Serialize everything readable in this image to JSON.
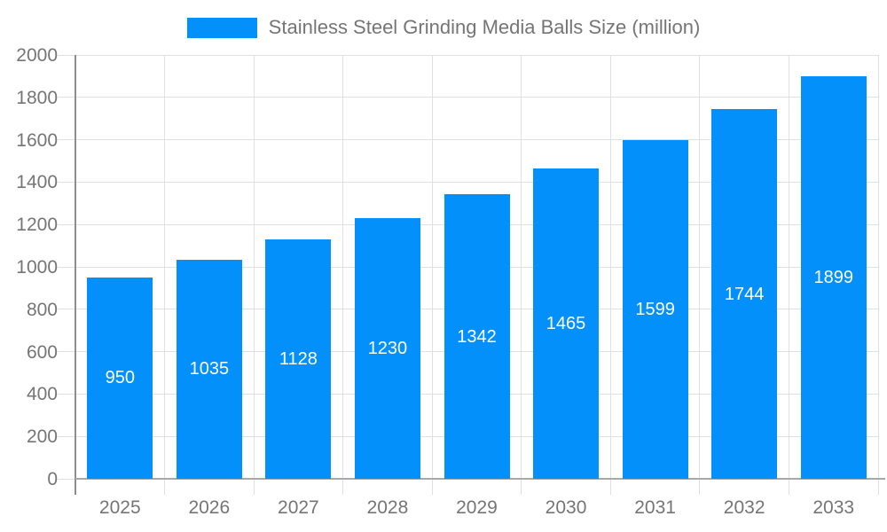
{
  "legend": {
    "label": "Stainless Steel Grinding Media Balls Size (million)"
  },
  "chart_data": {
    "type": "bar",
    "title": "Stainless Steel Grinding Media Balls Size (million)",
    "legend": [
      "Stainless Steel Grinding Media Balls Size (million)"
    ],
    "legend_position": "top",
    "categories": [
      "2025",
      "2026",
      "2027",
      "2028",
      "2029",
      "2030",
      "2031",
      "2032",
      "2033"
    ],
    "values": [
      950,
      1035,
      1128,
      1230,
      1342,
      1465,
      1599,
      1744,
      1899
    ],
    "xlabel": "",
    "ylabel": "",
    "ylim": [
      0,
      2000
    ],
    "ytick_step": 200,
    "grid": true,
    "bar_color": "#0490FB",
    "value_label_color": "#FFFFFF"
  }
}
